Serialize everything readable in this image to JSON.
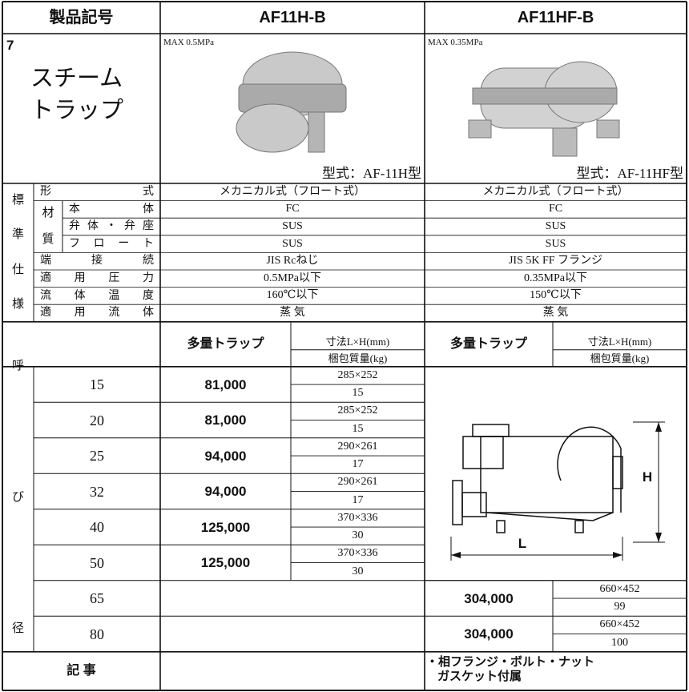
{
  "header": {
    "label": "製品記号",
    "models": [
      "AF11H-B",
      "AF11HF-B"
    ]
  },
  "product": {
    "number": "7",
    "name_lines": [
      "スチーム",
      "トラップ"
    ],
    "items": [
      {
        "max": "MAX 0.5MPa",
        "model": "型式：AF-11H型"
      },
      {
        "max": "MAX 0.35MPa",
        "model": "型式：AF-11HF型"
      }
    ]
  },
  "spec": {
    "group_chars": [
      "標",
      "準",
      "仕",
      "様"
    ],
    "rows_before": [
      {
        "label": "形式",
        "values": [
          "メカニカル式（フロート式）",
          "メカニカル式（フロート式）"
        ]
      }
    ],
    "material": {
      "label_chars": [
        "材",
        "質"
      ],
      "rows": [
        {
          "label": "本体",
          "values": [
            "FC",
            "FC"
          ]
        },
        {
          "label": "弁体・弁座",
          "values": [
            "SUS",
            "SUS"
          ]
        },
        {
          "label": "フロート",
          "values": [
            "SUS",
            "SUS"
          ]
        }
      ]
    },
    "rows_after": [
      {
        "label": "端接続",
        "values": [
          "JIS Rcねじ",
          "JIS 5K FF フランジ"
        ]
      },
      {
        "label": "適用圧力",
        "values": [
          "0.5MPa以下",
          "0.35MPa以下"
        ]
      },
      {
        "label": "流体温度",
        "values": [
          "160℃以下",
          "150℃以下"
        ]
      },
      {
        "label": "適用流体",
        "values": [
          "蒸 気",
          "蒸 気"
        ]
      }
    ]
  },
  "sizes": {
    "label_chars": [
      "呼",
      "び",
      "径"
    ],
    "column_headers": [
      {
        "price": "多量トラップ",
        "dims": "寸法L×H(mm)",
        "weight": "梱包質量(kg)"
      },
      {
        "price": "多量トラップ",
        "dims": "寸法L×H(mm)",
        "weight": "梱包質量(kg)"
      }
    ],
    "rows": [
      {
        "size": "15",
        "cells": [
          {
            "price": "81,000",
            "dims": "285×252",
            "weight": "15"
          },
          null
        ]
      },
      {
        "size": "20",
        "cells": [
          {
            "price": "81,000",
            "dims": "285×252",
            "weight": "15"
          },
          null
        ]
      },
      {
        "size": "25",
        "cells": [
          {
            "price": "94,000",
            "dims": "290×261",
            "weight": "17"
          },
          null
        ]
      },
      {
        "size": "32",
        "cells": [
          {
            "price": "94,000",
            "dims": "290×261",
            "weight": "17"
          },
          null
        ]
      },
      {
        "size": "40",
        "cells": [
          {
            "price": "125,000",
            "dims": "370×336",
            "weight": "30"
          },
          null
        ]
      },
      {
        "size": "50",
        "cells": [
          {
            "price": "125,000",
            "dims": "370×336",
            "weight": "30"
          },
          null
        ]
      },
      {
        "size": "65",
        "cells": [
          null,
          {
            "price": "304,000",
            "dims": "660×452",
            "weight": "99"
          }
        ]
      },
      {
        "size": "80",
        "cells": [
          null,
          {
            "price": "304,000",
            "dims": "660×452",
            "weight": "100"
          }
        ]
      }
    ]
  },
  "diagram": {
    "length_label": "L",
    "height_label": "H"
  },
  "notes": {
    "label": "記 事",
    "lines": [
      "・相フランジ・ボルト・ナット",
      "ガスケット付属"
    ]
  }
}
